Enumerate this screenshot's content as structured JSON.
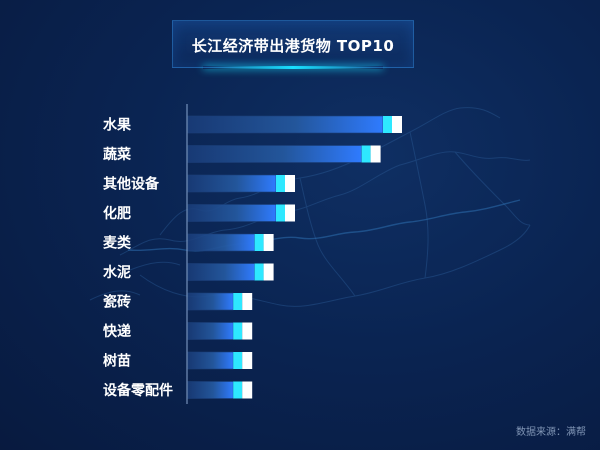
{
  "colors": {
    "background": "#0a2452",
    "bar_track": "#1c3f78",
    "bar_fill_start": "#1a3d7a",
    "bar_fill_end": "#2f7bff",
    "bar_cap_cyan": "#2ee8ff",
    "bar_cap_white": "#ffffff",
    "axis_line": "#8aa6cf"
  },
  "chart_data": {
    "type": "bar",
    "orientation": "horizontal",
    "title": "长江经济带出港货物 TOP10",
    "categories": [
      "水果",
      "蔬菜",
      "其他设备",
      "化肥",
      "麦类",
      "水泥",
      "瓷砖",
      "快递",
      "树苗",
      "设备零配件"
    ],
    "values": [
      10,
      9,
      5,
      5,
      4,
      4,
      3,
      3,
      3,
      3
    ],
    "xlim": [
      0,
      10
    ],
    "grid": false,
    "legend": "none"
  },
  "source": "数据来源：满帮"
}
